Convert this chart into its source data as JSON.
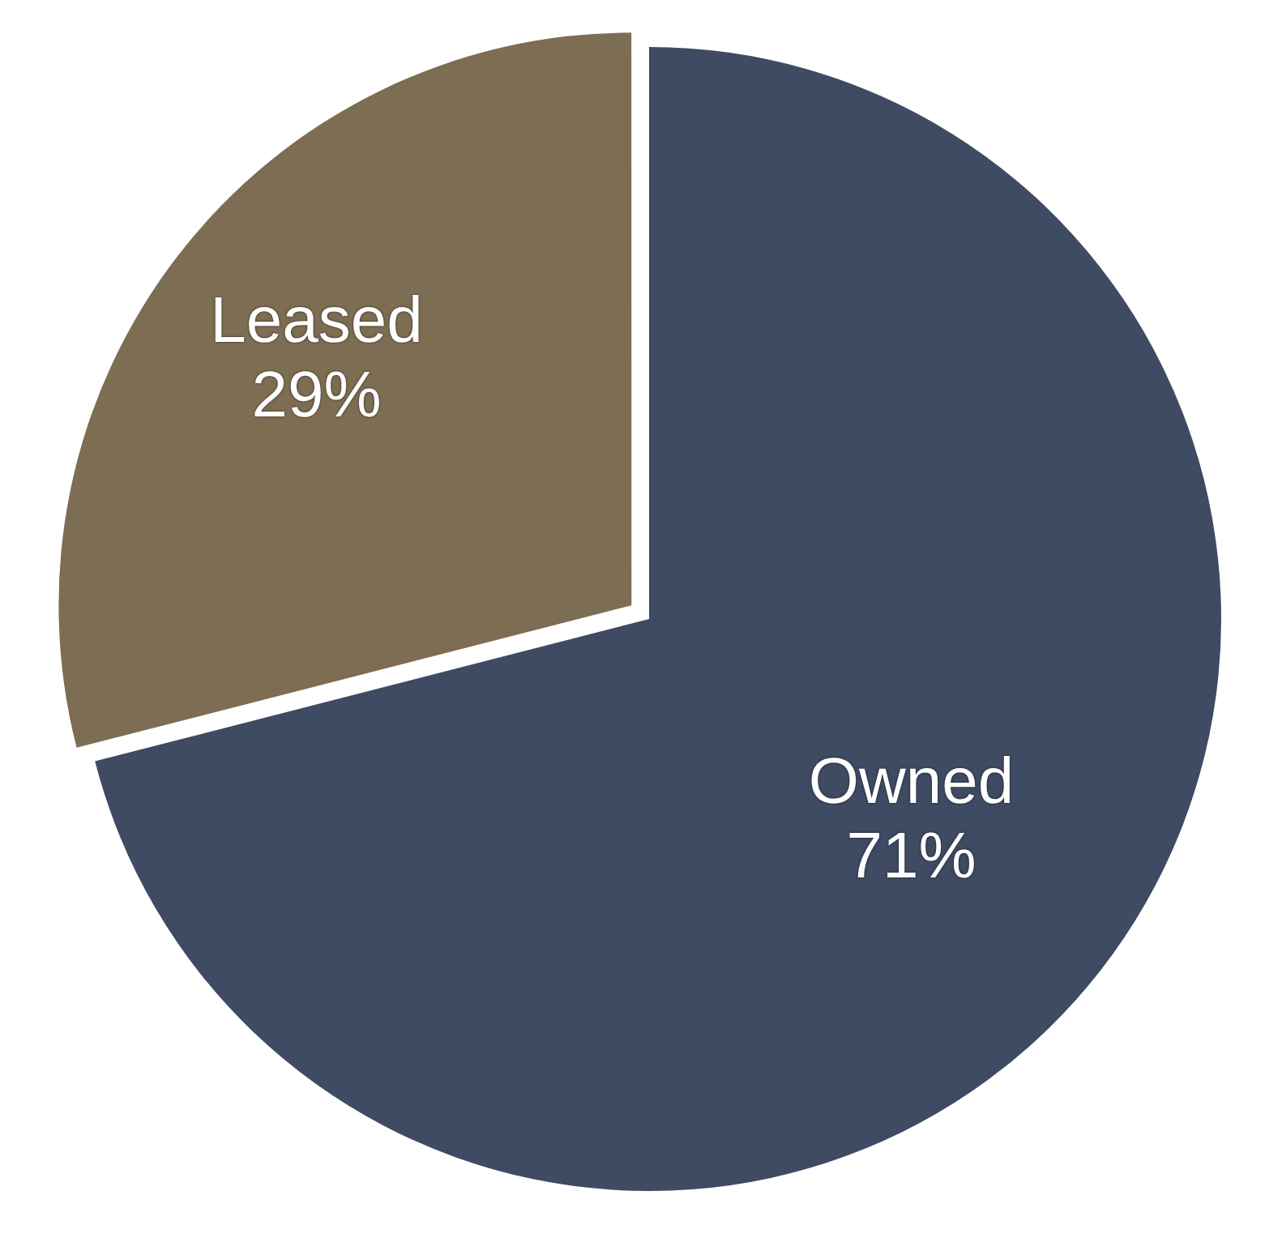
{
  "chart_data": {
    "type": "pie",
    "categories": [
      "Owned",
      "Leased"
    ],
    "values": [
      71,
      29
    ],
    "colors": [
      "#3f4a63",
      "#7d6d52"
    ],
    "value_labels": [
      "71%",
      "29%"
    ],
    "legend": false
  }
}
